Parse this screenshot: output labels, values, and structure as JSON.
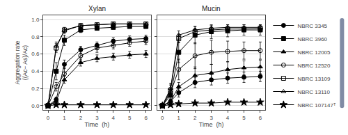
{
  "chart_data": [
    {
      "type": "line",
      "title": "Xylan",
      "xlabel": "Time  (h)",
      "ylabel": "Aggregation rate\n((Ac− As)/Ac)",
      "x": [
        0,
        0.5,
        1,
        2,
        3,
        4,
        5,
        6
      ],
      "xlim": [
        -0.3,
        6.3
      ],
      "xticks": [
        0,
        1,
        2,
        3,
        4,
        5,
        6
      ],
      "ylim": [
        -0.05,
        1.05
      ],
      "yticks": [
        {
          "value": 0.0,
          "label": "0.0"
        },
        0.2,
        0.4,
        0.6,
        0.8,
        {
          "value": 1.0,
          "label": "1.0"
        }
      ],
      "grid": "y",
      "legend": "right",
      "series": [
        {
          "name": "NBRC 3345",
          "color": "black",
          "marker": "circle",
          "values": [
            0.0,
            0.07,
            0.48,
            0.65,
            0.7,
            0.75,
            0.77,
            0.78
          ],
          "error": [
            0.0,
            0.03,
            0.05,
            0.04,
            0.04,
            0.04,
            0.04,
            0.04
          ]
        },
        {
          "name": "NBRC 3960",
          "color": "black",
          "marker": "square",
          "values": [
            0.0,
            0.4,
            0.76,
            0.88,
            0.9,
            0.91,
            0.92,
            0.92
          ],
          "error": [
            0.0,
            0.1,
            0.06,
            0.03,
            0.02,
            0.02,
            0.02,
            0.02
          ]
        },
        {
          "name": "NBRC 12005",
          "color": "black",
          "marker": "triangle-up",
          "values": [
            0.0,
            0.05,
            0.3,
            0.5,
            0.55,
            0.57,
            0.59,
            0.6
          ],
          "error": [
            0.0,
            0.02,
            0.04,
            0.04,
            0.04,
            0.04,
            0.04,
            0.04
          ]
        },
        {
          "name": "NBRC 12520",
          "color": "black",
          "marker": "circle-open",
          "values": [
            0.0,
            0.22,
            0.37,
            0.58,
            0.67,
            0.7,
            0.73,
            0.75
          ],
          "error": [
            0.0,
            0.05,
            0.07,
            0.06,
            0.05,
            0.04,
            0.04,
            0.04
          ]
        },
        {
          "name": "NBRC 13109",
          "color": "black",
          "marker": "square-open",
          "values": [
            0.0,
            0.67,
            0.88,
            0.93,
            0.94,
            0.95,
            0.95,
            0.95
          ],
          "error": [
            0.0,
            0.05,
            0.03,
            0.02,
            0.01,
            0.01,
            0.01,
            0.01
          ]
        },
        {
          "name": "NBRC 13110",
          "color": "black",
          "marker": "triangle-up-open",
          "values": [
            0.0,
            0.69,
            0.87,
            0.93,
            0.94,
            0.95,
            0.95,
            0.95
          ],
          "error": [
            0.0,
            0.05,
            0.03,
            0.02,
            0.01,
            0.01,
            0.01,
            0.01
          ]
        },
        {
          "name": "NBRC 107147ᵀ",
          "color": "black",
          "marker": "star",
          "values": [
            0.0,
            0.01,
            0.01,
            0.01,
            0.01,
            0.01,
            0.01,
            0.01
          ],
          "error": [
            0.0,
            0.01,
            0.005,
            0.005,
            0.005,
            0.005,
            0.005,
            0.005
          ]
        }
      ]
    },
    {
      "type": "line",
      "title": "Mucin",
      "xlabel": "Time  (h)",
      "x": [
        0,
        0.5,
        1,
        2,
        3,
        4,
        5,
        6
      ],
      "xlim": [
        -0.3,
        6.3
      ],
      "xticks": [
        0,
        1,
        2,
        3,
        4,
        5,
        6
      ],
      "ylim": [
        -0.05,
        1.05
      ],
      "yticks": [
        {
          "value": 0.0,
          "label": "0.0"
        },
        0.2,
        0.4,
        0.6,
        0.8,
        {
          "value": 1.0,
          "label": "1.0"
        }
      ],
      "grid": "y",
      "tick_labels": "x",
      "series": [
        {
          "name": "NBRC 3345",
          "color": "black",
          "marker": "circle",
          "values": [
            0.0,
            0.05,
            0.15,
            0.27,
            0.3,
            0.32,
            0.33,
            0.34
          ],
          "error": [
            0.0,
            0.03,
            0.05,
            0.06,
            0.06,
            0.06,
            0.06,
            0.06
          ]
        },
        {
          "name": "NBRC 3960",
          "color": "black",
          "marker": "square",
          "values": [
            0.0,
            0.12,
            0.62,
            0.82,
            0.86,
            0.87,
            0.88,
            0.88
          ],
          "error": [
            0.0,
            0.05,
            0.12,
            0.1,
            0.08,
            0.07,
            0.06,
            0.06
          ]
        },
        {
          "name": "NBRC 12005",
          "color": "black",
          "marker": "triangle-up",
          "values": [
            0.0,
            0.05,
            0.22,
            0.35,
            0.38,
            0.42,
            0.44,
            0.45
          ],
          "error": [
            0.0,
            0.02,
            0.05,
            0.1,
            0.1,
            0.09,
            0.08,
            0.08
          ]
        },
        {
          "name": "NBRC 12520",
          "color": "black",
          "marker": "circle-open",
          "values": [
            0.0,
            0.15,
            0.42,
            0.58,
            0.62,
            0.63,
            0.64,
            0.64
          ],
          "error": [
            0.0,
            0.05,
            0.12,
            0.15,
            0.14,
            0.12,
            0.1,
            0.1
          ]
        },
        {
          "name": "NBRC 13109",
          "color": "black",
          "marker": "square-open",
          "values": [
            0.0,
            0.18,
            0.78,
            0.86,
            0.88,
            0.89,
            0.89,
            0.9
          ],
          "error": [
            0.0,
            0.06,
            0.05,
            0.04,
            0.03,
            0.03,
            0.03,
            0.03
          ]
        },
        {
          "name": "NBRC 13110",
          "color": "black",
          "marker": "triangle-up-open",
          "values": [
            0.0,
            0.2,
            0.82,
            0.88,
            0.9,
            0.91,
            0.91,
            0.91
          ],
          "error": [
            0.0,
            0.06,
            0.05,
            0.04,
            0.03,
            0.03,
            0.03,
            0.03
          ]
        },
        {
          "name": "NBRC 107147ᵀ",
          "color": "black",
          "marker": "star",
          "values": [
            0.0,
            0.01,
            0.02,
            0.03,
            0.03,
            0.04,
            0.04,
            0.04
          ],
          "error": [
            0.0,
            0.01,
            0.01,
            0.01,
            0.01,
            0.01,
            0.01,
            0.01
          ]
        }
      ]
    }
  ]
}
